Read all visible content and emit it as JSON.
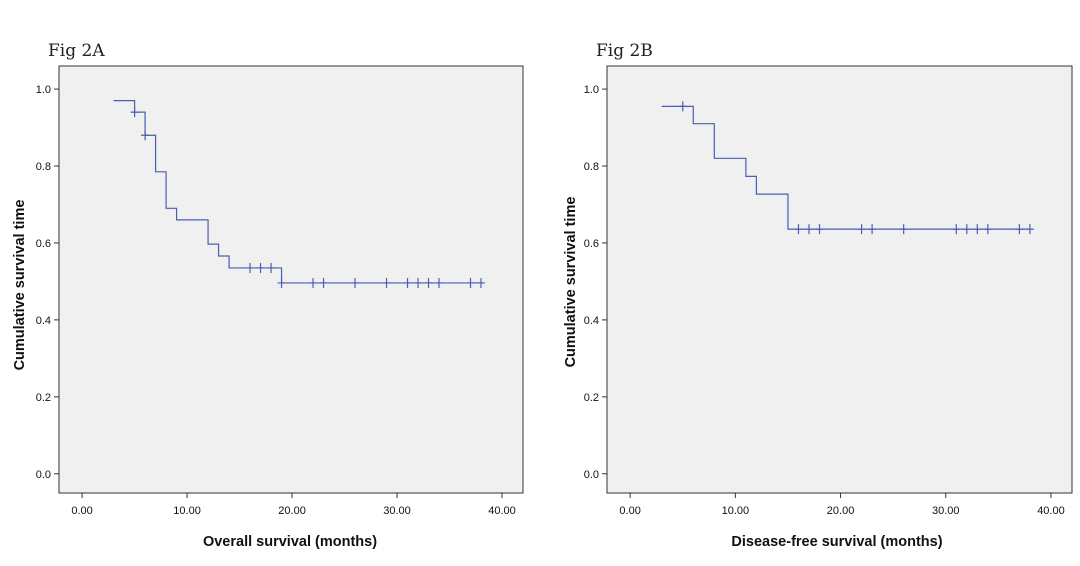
{
  "colors": {
    "curve": "#4a5fb0",
    "plot_bg": "#f0f0f0",
    "axis": "#333333"
  },
  "chart_data": [
    {
      "id": "A",
      "type": "line",
      "step": true,
      "figure_label": "Fig 2A",
      "xlabel": "Overall  survival (months)",
      "ylabel": "Cumulative survival time",
      "xlim": [
        -2.2,
        42
      ],
      "ylim": [
        -0.05,
        1.06
      ],
      "xticks": [
        0,
        10,
        20,
        30,
        40
      ],
      "xtick_labels": [
        "0.00",
        "10.00",
        "20.00",
        "30.00",
        "40.00"
      ],
      "yticks": [
        0,
        0.2,
        0.4,
        0.6,
        0.8,
        1.0
      ],
      "ytick_labels": [
        "0.0",
        "0.2",
        "0.4",
        "0.6",
        "0.8",
        "1.0"
      ],
      "grid": false,
      "series": [
        {
          "steps": [
            [
              3,
              0.97
            ],
            [
              5,
              0.94
            ],
            [
              6,
              0.88
            ],
            [
              7,
              0.785
            ],
            [
              8,
              0.69
            ],
            [
              9,
              0.66
            ],
            [
              12,
              0.597
            ],
            [
              13,
              0.566
            ],
            [
              14,
              0.535
            ],
            [
              19,
              0.496
            ],
            [
              38,
              0.496
            ]
          ],
          "censored": [
            [
              5,
              0.94
            ],
            [
              6,
              0.88
            ],
            [
              16,
              0.535
            ],
            [
              17,
              0.535
            ],
            [
              18,
              0.535
            ],
            [
              19,
              0.496
            ],
            [
              22,
              0.496
            ],
            [
              23,
              0.496
            ],
            [
              26,
              0.496
            ],
            [
              29,
              0.496
            ],
            [
              31,
              0.496
            ],
            [
              32,
              0.496
            ],
            [
              33,
              0.496
            ],
            [
              34,
              0.496
            ],
            [
              37,
              0.496
            ],
            [
              38,
              0.496
            ]
          ]
        }
      ]
    },
    {
      "id": "B",
      "type": "line",
      "step": true,
      "figure_label": "Fig 2B",
      "xlabel": "Disease-free survival (months)",
      "ylabel": "Cumulative survival time",
      "xlim": [
        -2.2,
        42
      ],
      "ylim": [
        -0.05,
        1.06
      ],
      "xticks": [
        0,
        10,
        20,
        30,
        40
      ],
      "xtick_labels": [
        "0.00",
        "10.00",
        "20.00",
        "30.00",
        "40.00"
      ],
      "yticks": [
        0,
        0.2,
        0.4,
        0.6,
        0.8,
        1.0
      ],
      "ytick_labels": [
        "0.0",
        "0.2",
        "0.4",
        "0.6",
        "0.8",
        "1.0"
      ],
      "grid": false,
      "series": [
        {
          "steps": [
            [
              3,
              0.955
            ],
            [
              6,
              0.91
            ],
            [
              8,
              0.82
            ],
            [
              11,
              0.773
            ],
            [
              12,
              0.727
            ],
            [
              15,
              0.636
            ],
            [
              38,
              0.636
            ]
          ],
          "censored": [
            [
              5,
              0.955
            ],
            [
              16,
              0.636
            ],
            [
              17,
              0.636
            ],
            [
              18,
              0.636
            ],
            [
              22,
              0.636
            ],
            [
              23,
              0.636
            ],
            [
              26,
              0.636
            ],
            [
              31,
              0.636
            ],
            [
              32,
              0.636
            ],
            [
              33,
              0.636
            ],
            [
              34,
              0.636
            ],
            [
              37,
              0.636
            ],
            [
              38,
              0.636
            ]
          ]
        }
      ]
    }
  ]
}
